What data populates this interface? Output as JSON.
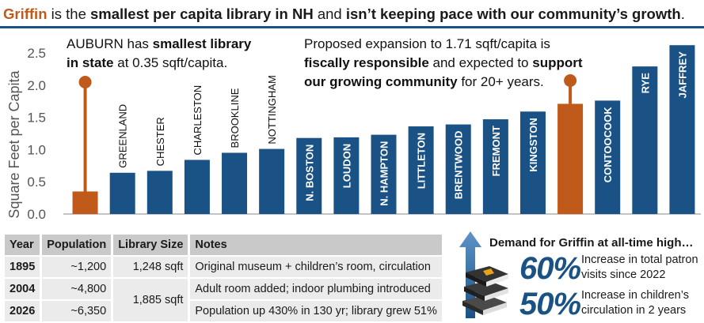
{
  "headline": {
    "name": "Griffin",
    "part1": " is the ",
    "bold1": "smallest per capita library in NH",
    "part2": " and ",
    "bold2": "isn’t keeping pace with our community’s growth",
    "end": "."
  },
  "annotations": {
    "auburn": {
      "t1": "AUBURN has ",
      "b1": "smallest library",
      "b2": "in state",
      "t2": " at 0.35 sqft/capita."
    },
    "proposed": {
      "t1": "Proposed expansion to 1.71 sqft/capita is",
      "b1": "fiscally responsible",
      "t2": " and expected to ",
      "b2": "support",
      "b3": "our growing community",
      "t3": " for 20+ years."
    }
  },
  "colors": {
    "blue": "#1a5286",
    "orange": "#c05a1b"
  },
  "chart_data": {
    "type": "bar",
    "ylabel": "Square Feet per Capita",
    "ylim": [
      0,
      2.5
    ],
    "yticks": [
      "0.0",
      "0.5",
      "1.0",
      "1.5",
      "2.0",
      "2.5"
    ],
    "categories": [
      "",
      "GREENLAND",
      "CHESTER",
      "CHARLESTON",
      "BROOKLINE",
      "NOTTINGHAM",
      "N. BOSTON",
      "LOUDON",
      "N. HAMPTON",
      "LITTLETON",
      "BRENTWOOD",
      "FREMONT",
      "KINGSTON",
      "",
      "CONTOOCOOK",
      "RYE",
      "JAFFREY"
    ],
    "values": [
      0.35,
      0.64,
      0.67,
      0.84,
      0.95,
      1.01,
      1.18,
      1.19,
      1.23,
      1.36,
      1.39,
      1.47,
      1.59,
      1.71,
      1.76,
      2.29,
      2.62
    ],
    "highlight_indices": [
      0,
      13
    ],
    "labels_inside": [
      false,
      false,
      false,
      false,
      false,
      false,
      true,
      true,
      true,
      true,
      true,
      true,
      true,
      false,
      true,
      true,
      true
    ]
  },
  "table": {
    "headers": [
      "Year",
      "Population",
      "Library Size",
      "Notes"
    ],
    "rows": [
      {
        "year": "1895",
        "population": "~1,200",
        "size": "1,248 sqft",
        "notes": "Original museum + children’s room, circulation"
      },
      {
        "year": "2004",
        "population": "~4,800",
        "size": "1,885 sqft",
        "notes": "Adult room added; indoor plumbing introduced"
      },
      {
        "year": "2026",
        "population": "~6,350",
        "size": "",
        "notes": "Population up 430% in 130 yr; library grew 51%"
      }
    ]
  },
  "demand": {
    "title": "Demand for Griffin at all-time high…",
    "stats": [
      {
        "value": "60%",
        "desc": "Increase in total patron visits since 2022"
      },
      {
        "value": "50%",
        "desc": "Increase in children’s circulation in 2 years"
      }
    ],
    "icon": "books-stack-icon"
  }
}
